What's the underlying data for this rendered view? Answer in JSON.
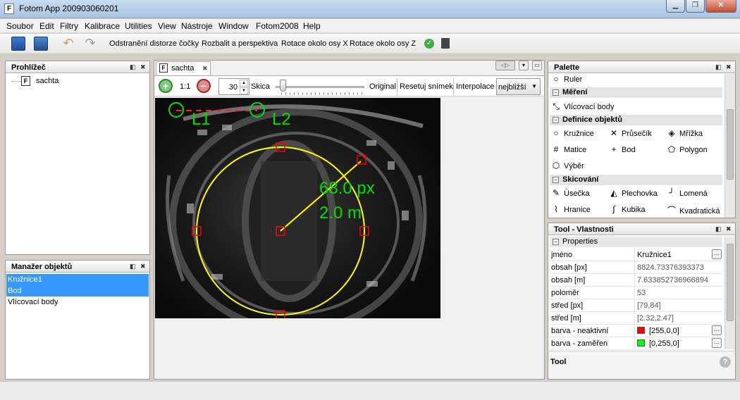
{
  "window": {
    "title": "Fotom App 200903060201",
    "app_icon": "F"
  },
  "menu": [
    "Soubor",
    "Edit",
    "Filtry",
    "Kalibrace",
    "Utilities",
    "View",
    "Nástroje",
    "Window",
    "Fotom2008",
    "Help"
  ],
  "toolbar": {
    "actions": [
      "Odstranění distorze čočky",
      "Rozbalit a perspektiva",
      "Rotace okolo osy X",
      "Rotace okolo osy Z"
    ]
  },
  "browser": {
    "title": "Prohlížeč",
    "tree_item": "sachta"
  },
  "object_manager": {
    "title": "Manažer objektů",
    "items": [
      "Kružnice1",
      "Bod",
      "Vlícovací body"
    ]
  },
  "document": {
    "tab": "sachta",
    "zoom_ratio": "1:1",
    "zoom_value": "30",
    "skica_label": "Skica",
    "buttons": [
      "Original",
      "Resetuj snímek"
    ],
    "interp_label": "Interpolace",
    "interp_value": "nejbližší",
    "overlay": {
      "l1": "L1",
      "l2": "L2",
      "radius_px": "68.0 px",
      "radius_m": "2.0 m"
    }
  },
  "palette": {
    "title": "Palette",
    "ruler": "Ruler",
    "sections": [
      {
        "name": "Měření",
        "items": [
          "Vlícovací body"
        ]
      },
      {
        "name": "Definice objektů",
        "items": [
          "Kružnice",
          "Průsečík",
          "Mřížka",
          "Matice",
          "Bod",
          "Polygon",
          "Výběr"
        ]
      },
      {
        "name": "Skicování",
        "items": [
          "Úsečka",
          "Plechovka",
          "Lomená",
          "Hranice",
          "Kubika",
          "Kvadratická"
        ]
      }
    ]
  },
  "properties": {
    "title": "Tool - Vlastnosti",
    "group": "Properties",
    "rows": [
      {
        "k": "jméno",
        "v": "Kružnice1"
      },
      {
        "k": "obsah [px]",
        "v": "8824.73376393373"
      },
      {
        "k": "obsah [m]",
        "v": "7.633852736966894"
      },
      {
        "k": "poloměr",
        "v": "53"
      },
      {
        "k": "střed [px]",
        "v": "[79,84]"
      },
      {
        "k": "střed [m]",
        "v": "[2.32,2.47]"
      },
      {
        "k": "barva - neaktivní",
        "v": "[255,0,0]"
      },
      {
        "k": "barva - zaměřen",
        "v": "[0,255,0]"
      }
    ],
    "footer": "Tool"
  },
  "colors": {
    "inactive": "#ff0000",
    "focused": "#00ff00",
    "overlay_circle": "#ffff00",
    "overlay_text": "#00e000",
    "selection": "#3399ff"
  }
}
